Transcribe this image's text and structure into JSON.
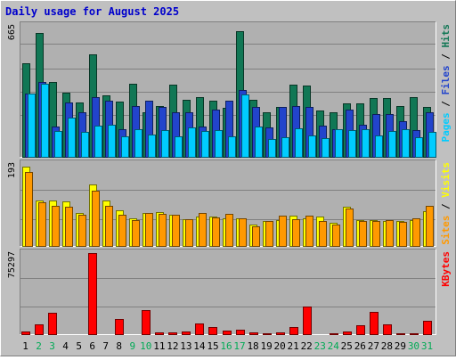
{
  "chart_data": {
    "title": "Daily usage for August 2025",
    "days": [
      "1",
      "2",
      "3",
      "4",
      "5",
      "6",
      "7",
      "8",
      "9",
      "10",
      "11",
      "12",
      "13",
      "14",
      "15",
      "16",
      "17",
      "18",
      "19",
      "20",
      "21",
      "22",
      "23",
      "24",
      "25",
      "26",
      "27",
      "28",
      "29",
      "30",
      "31"
    ],
    "weekend_days": [
      "2",
      "3",
      "9",
      "10",
      "16",
      "17",
      "23",
      "24",
      "30",
      "31"
    ],
    "panels": [
      {
        "type": "bar",
        "max_label": "665",
        "ymax": 665,
        "series": [
          {
            "name": "Hits",
            "color": "#117755",
            "values": [
              473,
              630,
              380,
              325,
              275,
              520,
              310,
              280,
              370,
              225,
              260,
              365,
              290,
              305,
              285,
              250,
              640,
              290,
              225,
              255,
              365,
              360,
              235,
              225,
              270,
              270,
              300,
              300,
              260,
              305,
              255
            ]
          },
          {
            "name": "Files",
            "color": "#2244cc",
            "values": [
              320,
              378,
              155,
              275,
              225,
              305,
              285,
              140,
              260,
              285,
              255,
              225,
              225,
              155,
              240,
              285,
              340,
              255,
              150,
              255,
              260,
              255,
              160,
              140,
              240,
              165,
              215,
              215,
              180,
              135,
              225
            ]
          },
          {
            "name": "Pages",
            "color": "#00ccff",
            "values": [
              320,
              370,
              130,
              200,
              125,
              160,
              165,
              105,
              140,
              115,
              135,
              105,
              150,
              130,
              135,
              105,
              315,
              155,
              90,
              100,
              145,
              110,
              95,
              140,
              135,
              140,
              110,
              130,
              140,
              100,
              125
            ]
          }
        ]
      },
      {
        "type": "bar",
        "max_label": "193",
        "ymax": 193,
        "series": [
          {
            "name": "Visits",
            "color": "#ffff00",
            "values": [
              187,
              108,
              108,
              105,
              77,
              145,
              107,
              84,
              65,
              77,
              79,
              73,
              62,
              70,
              70,
              66,
              66,
              50,
              59,
              61,
              71,
              66,
              69,
              55,
              92,
              61,
              60,
              59,
              59,
              60,
              82
            ]
          },
          {
            "name": "Sites",
            "color": "#ff9900",
            "values": [
              175,
              102,
              94,
              93,
              73,
              130,
              95,
              73,
              60,
              78,
              75,
              73,
              63,
              78,
              67,
              76,
              65,
              47,
              59,
              72,
              63,
              72,
              59,
              51,
              88,
              59,
              59,
              60,
              56,
              64,
              95
            ]
          }
        ]
      },
      {
        "type": "bar",
        "max_label": "75297",
        "ymax": 75297,
        "series": [
          {
            "name": "KBytes",
            "color": "#ff0000",
            "values": [
              2500,
              8700,
              19500,
              0,
              0,
              75297,
              0,
              14100,
              0,
              22500,
              1500,
              1500,
              2200,
              9800,
              6700,
              3400,
              4500,
              1500,
              1000,
              1500,
              6700,
              25500,
              0,
              1000,
              2200,
              7900,
              20900,
              9300,
              1000,
              1200,
              12300
            ]
          }
        ]
      }
    ],
    "right_labels": [
      {
        "parts": [
          {
            "text": "Pages",
            "color": "#00ccff"
          },
          {
            "text": " / ",
            "color": "#000000"
          },
          {
            "text": "Files",
            "color": "#2244cc"
          },
          {
            "text": " / ",
            "color": "#000000"
          },
          {
            "text": "Hits",
            "color": "#117755"
          }
        ]
      },
      {
        "parts": [
          {
            "text": "Sites",
            "color": "#ff9900"
          },
          {
            "text": " / ",
            "color": "#000000"
          },
          {
            "text": "Visits",
            "color": "#ffff00"
          }
        ]
      },
      {
        "parts": [
          {
            "text": "KBytes",
            "color": "#ff0000"
          }
        ]
      }
    ]
  }
}
